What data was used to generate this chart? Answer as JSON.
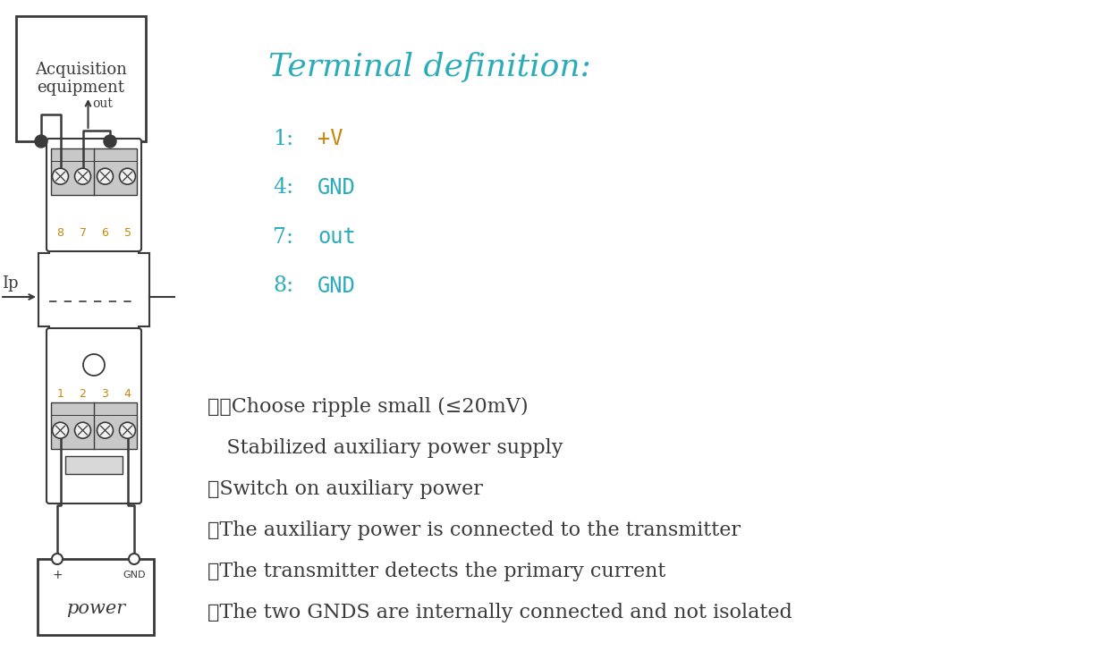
{
  "bg_color": "#ffffff",
  "line_color": "#3a3a3a",
  "title": "Terminal definition:",
  "title_color": "#2aacbb",
  "title_fontsize": 26,
  "terminal_lines": [
    {
      "num": "1",
      "colon": ":",
      "value": "+V",
      "value_color": "#c8860a"
    },
    {
      "num": "4",
      "colon": ":",
      "value": "GND",
      "value_color": "#2aacbb"
    },
    {
      "num": "7",
      "colon": ":",
      "value": "out",
      "value_color": "#2aacbb"
    },
    {
      "num": "8",
      "colon": ":",
      "value": "GND",
      "value_color": "#2aacbb"
    }
  ],
  "terminal_fontsize": 17,
  "notes_fontsize": 16,
  "notes_color": "#3a3a3a",
  "note_lines": [
    "※①Choose ripple small (≤20mV)",
    "   Stabilized auxiliary power supply",
    "②Switch on auxiliary power",
    "③The auxiliary power is connected to the transmitter",
    "④The transmitter detects the primary current",
    "⑤The two GNDS are internally connected and not isolated"
  ],
  "acq_text": "Acquisition\nequipment",
  "acq_fontsize": 13,
  "power_text": "power",
  "power_fontsize": 15
}
